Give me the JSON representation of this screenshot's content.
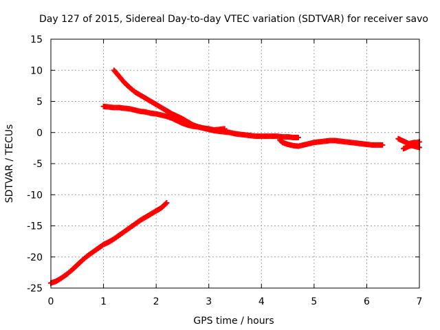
{
  "chart_data": {
    "type": "scatter",
    "title": "Day 127 of 2015, Sidereal Day-to-day VTEC variation (SDTVAR) for receiver savo",
    "xlabel": "GPS time / hours",
    "ylabel": "SDTVAR / TECUs",
    "xlim": [
      0,
      7
    ],
    "ylim": [
      -25,
      15
    ],
    "xticks": [
      "0",
      "1",
      "2",
      "3",
      "4",
      "5",
      "6",
      "7"
    ],
    "yticks": [
      "-25",
      "-20",
      "-15",
      "-10",
      "-5",
      "0",
      "5",
      "10",
      "15"
    ],
    "grid": true,
    "legend": "none",
    "marker_color": "#ff0000",
    "series": [
      {
        "points": [
          [
            0.0,
            -24.2
          ],
          [
            0.1,
            -23.9
          ],
          [
            0.2,
            -23.4
          ],
          [
            0.3,
            -22.8
          ],
          [
            0.4,
            -22.1
          ],
          [
            0.5,
            -21.3
          ],
          [
            0.6,
            -20.5
          ],
          [
            0.7,
            -19.8
          ],
          [
            0.8,
            -19.2
          ],
          [
            0.9,
            -18.6
          ],
          [
            1.0,
            -18.0
          ],
          [
            1.1,
            -17.6
          ],
          [
            1.2,
            -17.1
          ],
          [
            1.3,
            -16.5
          ],
          [
            1.4,
            -15.9
          ],
          [
            1.5,
            -15.3
          ],
          [
            1.6,
            -14.7
          ],
          [
            1.7,
            -14.1
          ],
          [
            1.8,
            -13.6
          ],
          [
            1.9,
            -13.1
          ],
          [
            2.0,
            -12.6
          ],
          [
            2.1,
            -12.1
          ],
          [
            2.2,
            -11.3
          ]
        ]
      },
      {
        "points": [
          [
            1.2,
            10.0
          ],
          [
            1.3,
            9.0
          ],
          [
            1.4,
            8.0
          ],
          [
            1.5,
            7.2
          ],
          [
            1.6,
            6.5
          ],
          [
            1.7,
            6.0
          ],
          [
            1.8,
            5.5
          ],
          [
            1.9,
            5.0
          ],
          [
            2.0,
            4.5
          ],
          [
            2.1,
            4.0
          ],
          [
            2.2,
            3.5
          ],
          [
            2.3,
            3.0
          ],
          [
            2.4,
            2.6
          ],
          [
            2.5,
            2.2
          ],
          [
            2.6,
            1.7
          ],
          [
            2.7,
            1.2
          ],
          [
            2.8,
            0.9
          ],
          [
            2.9,
            0.7
          ],
          [
            3.0,
            0.6
          ],
          [
            3.1,
            0.4
          ],
          [
            3.2,
            0.5
          ],
          [
            3.3,
            0.6
          ]
        ]
      },
      {
        "points": [
          [
            1.0,
            4.2
          ],
          [
            1.1,
            4.1
          ],
          [
            1.2,
            4.0
          ],
          [
            1.3,
            4.0
          ],
          [
            1.4,
            3.9
          ],
          [
            1.5,
            3.8
          ],
          [
            1.6,
            3.6
          ],
          [
            1.7,
            3.4
          ],
          [
            1.8,
            3.3
          ],
          [
            1.9,
            3.1
          ],
          [
            2.0,
            3.0
          ],
          [
            2.1,
            2.8
          ],
          [
            2.2,
            2.6
          ],
          [
            2.3,
            2.3
          ],
          [
            2.4,
            1.9
          ],
          [
            2.5,
            1.5
          ],
          [
            2.6,
            1.2
          ],
          [
            2.7,
            1.0
          ],
          [
            2.8,
            0.9
          ],
          [
            2.9,
            0.7
          ],
          [
            3.0,
            0.5
          ],
          [
            3.1,
            0.3
          ],
          [
            3.2,
            0.2
          ],
          [
            3.3,
            0.1
          ],
          [
            3.4,
            0.0
          ],
          [
            3.5,
            -0.2
          ],
          [
            3.6,
            -0.3
          ],
          [
            3.7,
            -0.4
          ],
          [
            3.8,
            -0.5
          ],
          [
            3.9,
            -0.6
          ],
          [
            4.0,
            -0.6
          ],
          [
            4.1,
            -0.6
          ],
          [
            4.2,
            -0.6
          ],
          [
            4.3,
            -0.6
          ],
          [
            4.4,
            -0.7
          ],
          [
            4.5,
            -0.7
          ],
          [
            4.6,
            -0.8
          ],
          [
            4.7,
            -0.8
          ]
        ]
      },
      {
        "points": [
          [
            4.35,
            -1.2
          ],
          [
            4.4,
            -1.6
          ],
          [
            4.5,
            -1.9
          ],
          [
            4.6,
            -2.1
          ],
          [
            4.7,
            -2.2
          ],
          [
            4.8,
            -2.0
          ],
          [
            4.9,
            -1.8
          ],
          [
            5.0,
            -1.6
          ],
          [
            5.1,
            -1.5
          ],
          [
            5.2,
            -1.4
          ],
          [
            5.3,
            -1.3
          ],
          [
            5.4,
            -1.3
          ],
          [
            5.5,
            -1.4
          ],
          [
            5.6,
            -1.5
          ],
          [
            5.7,
            -1.6
          ],
          [
            5.8,
            -1.7
          ],
          [
            5.9,
            -1.8
          ],
          [
            6.0,
            -1.9
          ],
          [
            6.1,
            -2.0
          ],
          [
            6.2,
            -2.0
          ],
          [
            6.3,
            -2.0
          ]
        ]
      },
      {
        "points": [
          [
            6.6,
            -1.0
          ],
          [
            6.65,
            -1.2
          ],
          [
            6.7,
            -1.4
          ],
          [
            6.75,
            -1.6
          ],
          [
            6.8,
            -1.8
          ],
          [
            6.85,
            -1.7
          ],
          [
            6.9,
            -1.6
          ],
          [
            6.95,
            -1.6
          ],
          [
            7.0,
            -1.5
          ]
        ]
      },
      {
        "points": [
          [
            6.7,
            -2.6
          ],
          [
            6.75,
            -2.4
          ],
          [
            6.8,
            -2.2
          ],
          [
            6.85,
            -2.1
          ],
          [
            6.9,
            -2.2
          ],
          [
            6.95,
            -2.3
          ],
          [
            7.0,
            -2.4
          ]
        ]
      }
    ]
  }
}
